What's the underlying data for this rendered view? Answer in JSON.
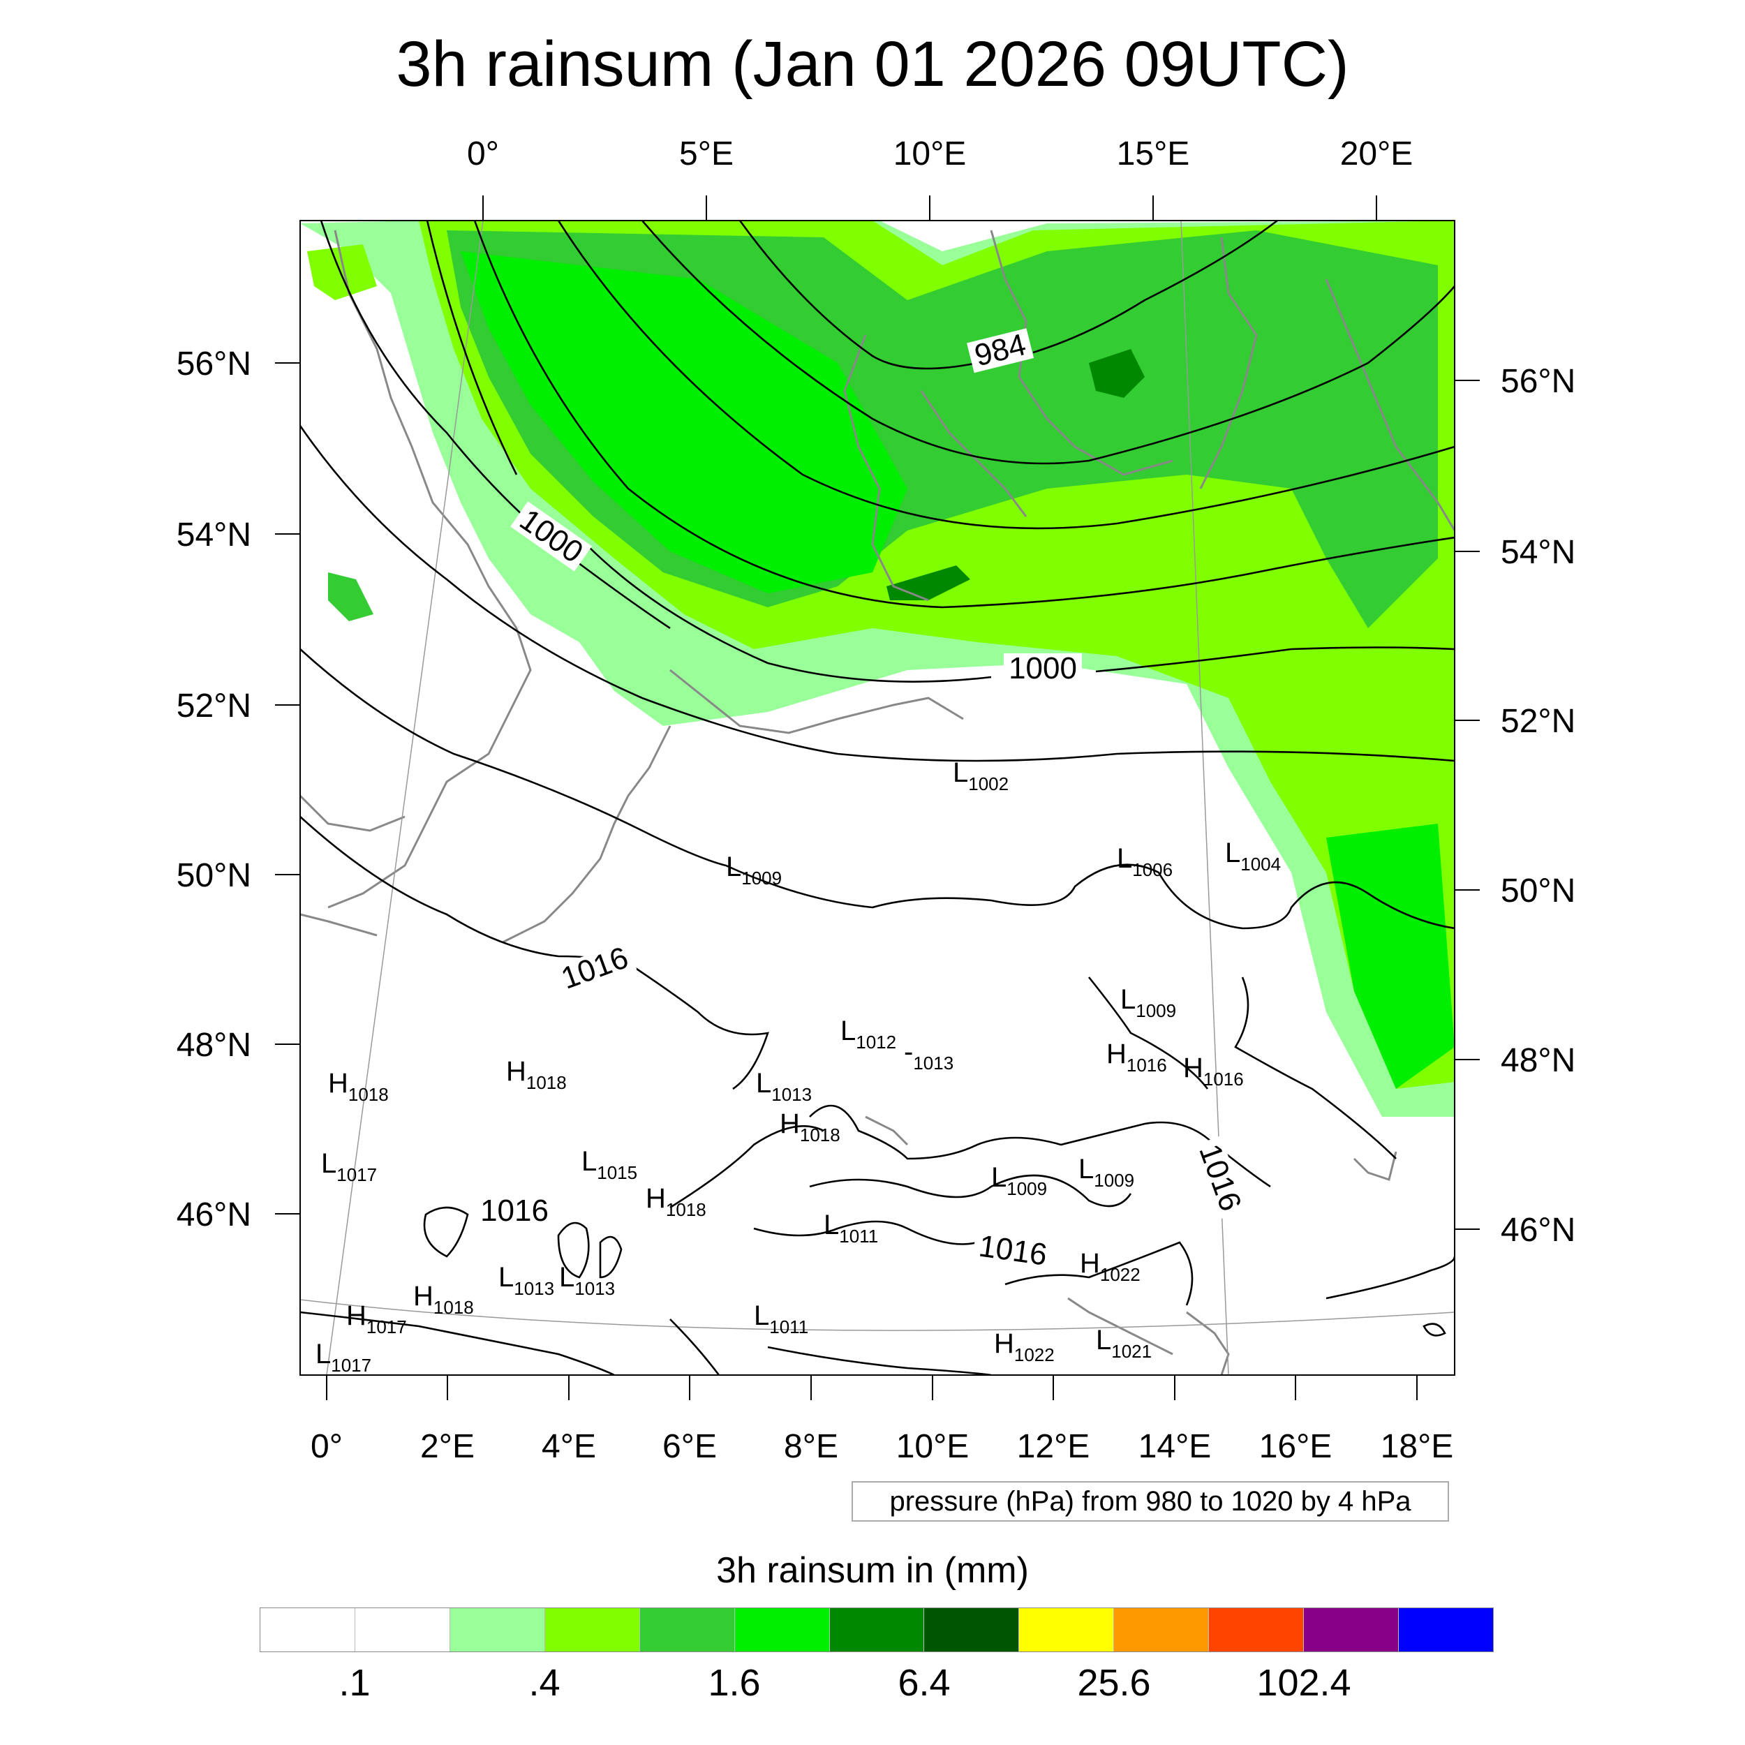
{
  "title": "3h rainsum (Jan 01 2026 09UTC)",
  "axes": {
    "top_lon": [
      "0°",
      "5°E",
      "10°E",
      "15°E",
      "20°E"
    ],
    "bottom_lon": [
      "0°",
      "2°E",
      "4°E",
      "6°E",
      "8°E",
      "10°E",
      "12°E",
      "14°E",
      "16°E",
      "18°E"
    ],
    "left_lat": [
      "56°N",
      "54°N",
      "52°N",
      "50°N",
      "48°N",
      "46°N"
    ],
    "right_lat": [
      "56°N",
      "54°N",
      "52°N",
      "50°N",
      "48°N",
      "46°N"
    ]
  },
  "isobar_labels": [
    "984",
    "1000",
    "1000",
    "1016",
    "1016",
    "1016",
    "1016"
  ],
  "pressure_centers": [
    {
      "type": "L",
      "value": "1002"
    },
    {
      "type": "L",
      "value": "1009"
    },
    {
      "type": "L",
      "value": "1006"
    },
    {
      "type": "L",
      "value": "1004"
    },
    {
      "type": "L",
      "value": "1009"
    },
    {
      "type": "L",
      "value": "1012"
    },
    {
      "type": "L",
      "value": "1013"
    },
    {
      "type": "H",
      "value": "1018"
    },
    {
      "type": "H",
      "value": "1018"
    },
    {
      "type": "L",
      "value": "1013"
    },
    {
      "type": "H",
      "value": "1016"
    },
    {
      "type": "H",
      "value": "1016"
    },
    {
      "type": "H",
      "value": "1018"
    },
    {
      "type": "L",
      "value": "1017"
    },
    {
      "type": "L",
      "value": "1015"
    },
    {
      "type": "H",
      "value": "1018"
    },
    {
      "type": "L",
      "value": "1009"
    },
    {
      "type": "L",
      "value": "1009"
    },
    {
      "type": "L",
      "value": "1011"
    },
    {
      "type": "L",
      "value": "1013"
    },
    {
      "type": "L",
      "value": "1013"
    },
    {
      "type": "H",
      "value": "1018"
    },
    {
      "type": "H",
      "value": "1017"
    },
    {
      "type": "L",
      "value": "1011"
    },
    {
      "type": "H",
      "value": "1022"
    },
    {
      "type": "L",
      "value": "1017"
    },
    {
      "type": "H",
      "value": "1022"
    },
    {
      "type": "L",
      "value": "1021"
    }
  ],
  "pressure_note": "pressure (hPa) from 980 to 1020 by 4 hPa",
  "colorbar": {
    "title": "3h rainsum in (mm)",
    "colors": [
      "#ffffff",
      "#ffffff",
      "#99ff99",
      "#80ff00",
      "#33cc33",
      "#00ee00",
      "#008800",
      "#005500",
      "#ffff00",
      "#ff9900",
      "#ff4400",
      "#880088",
      "#0000ff"
    ],
    "labels": [
      ".1",
      ".4",
      "1.6",
      "6.4",
      "25.6",
      "102.4"
    ]
  }
}
